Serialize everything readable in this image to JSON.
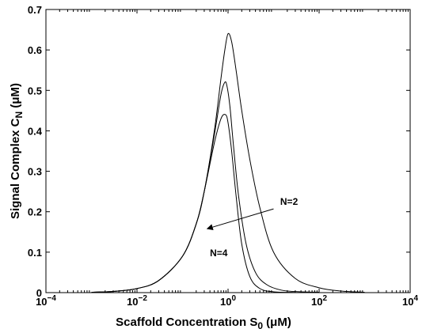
{
  "chart_data": {
    "type": "line",
    "title": "",
    "xlabel": "Scaffold Concentration S",
    "xlabel_sub": "0",
    "xlabel_unit": " (μM)",
    "ylabel": "Signal Complex C",
    "ylabel_sub": "N",
    "ylabel_unit": " (μM)",
    "x_scale": "log",
    "xlim": [
      0.0001,
      10000
    ],
    "ylim": [
      0,
      0.7
    ],
    "grid": false,
    "legend": "none",
    "x_ticks": [
      {
        "value": 0.0001,
        "base": "10",
        "exp": "−4"
      },
      {
        "value": 0.01,
        "base": "10",
        "exp": "−2"
      },
      {
        "value": 1,
        "base": "10",
        "exp": "0"
      },
      {
        "value": 100,
        "base": "10",
        "exp": "2"
      },
      {
        "value": 10000,
        "base": "10",
        "exp": "4"
      }
    ],
    "y_ticks": [
      "0",
      "0.1",
      "0.2",
      "0.3",
      "0.4",
      "0.5",
      "0.6",
      "0.7"
    ],
    "line_color": "#000000",
    "series": [
      {
        "x": [
          0.001,
          0.003,
          0.01,
          0.03,
          0.1,
          0.2,
          0.3,
          0.5,
          0.7,
          0.85,
          1.0,
          1.2,
          1.5,
          2,
          3,
          5,
          10,
          30,
          100,
          300,
          1000
        ],
        "y": [
          0.001,
          0.003,
          0.01,
          0.03,
          0.09,
          0.17,
          0.25,
          0.4,
          0.53,
          0.6,
          0.64,
          0.62,
          0.55,
          0.45,
          0.33,
          0.21,
          0.1,
          0.035,
          0.012,
          0.004,
          0.001
        ]
      },
      {
        "x": [
          0.001,
          0.003,
          0.01,
          0.03,
          0.1,
          0.2,
          0.3,
          0.5,
          0.7,
          0.85,
          0.95,
          1.1,
          1.3,
          1.7,
          2.5,
          4,
          7,
          15,
          40,
          100
        ],
        "y": [
          0.001,
          0.003,
          0.01,
          0.03,
          0.09,
          0.17,
          0.25,
          0.39,
          0.49,
          0.52,
          0.51,
          0.46,
          0.37,
          0.24,
          0.12,
          0.05,
          0.02,
          0.006,
          0.002,
          0.001
        ]
      },
      {
        "x": [
          0.001,
          0.003,
          0.01,
          0.03,
          0.1,
          0.2,
          0.3,
          0.5,
          0.7,
          0.88,
          1.0,
          1.2,
          1.5,
          2,
          3,
          5,
          10,
          30
        ],
        "y": [
          0.001,
          0.003,
          0.01,
          0.03,
          0.09,
          0.17,
          0.25,
          0.37,
          0.43,
          0.44,
          0.42,
          0.35,
          0.24,
          0.12,
          0.04,
          0.01,
          0.002,
          0.0005
        ]
      }
    ],
    "annotations": [
      {
        "text": "N=2",
        "x": 14,
        "y": 0.225
      },
      {
        "text": "N=4",
        "x": 0.4,
        "y": 0.098
      }
    ],
    "arrow": {
      "from": [
        10,
        0.207
      ],
      "to": [
        0.35,
        0.158
      ]
    }
  }
}
